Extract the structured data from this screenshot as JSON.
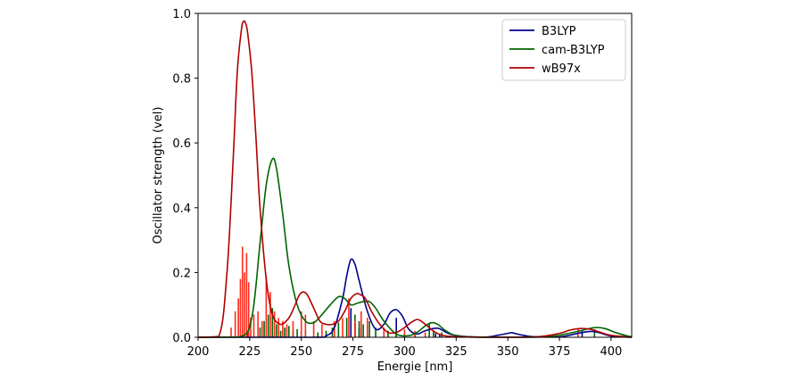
{
  "chart_data": {
    "type": "line",
    "title": "",
    "xlabel": "Energie [nm]",
    "ylabel": "Oscillator strength (vel)",
    "xlim": [
      200,
      410
    ],
    "ylim": [
      0,
      1.0
    ],
    "xticks": [
      200,
      225,
      250,
      275,
      300,
      325,
      350,
      375,
      400
    ],
    "yticks": [
      0.0,
      0.2,
      0.4,
      0.6,
      0.8,
      1.0
    ],
    "xtick_labels": [
      "200",
      "225",
      "250",
      "275",
      "300",
      "325",
      "350",
      "375",
      "400"
    ],
    "ytick_labels": [
      "0.0",
      "0.2",
      "0.4",
      "0.6",
      "0.8",
      "1.0"
    ],
    "grid": false,
    "legend_position": "top-right",
    "legend_entries": [
      "B3LYP",
      "cam-B3LYP",
      "wB97x"
    ],
    "colors": {
      "B3LYP": "#00008b",
      "cam-B3LYP": "#006400",
      "wB97x": "#b00000",
      "wB97x_sticks": "#ff2a1a"
    },
    "series": [
      {
        "name": "B3LYP",
        "color": "#00008b",
        "x": [
          200,
          255,
          262,
          266,
          270,
          272,
          274,
          276,
          278,
          282,
          286,
          290,
          293,
          296,
          299,
          302,
          306,
          310,
          316,
          322,
          330,
          340,
          345,
          350,
          352,
          356,
          362,
          375,
          390,
          400,
          410
        ],
        "y": [
          0,
          0,
          0.005,
          0.03,
          0.12,
          0.19,
          0.24,
          0.225,
          0.175,
          0.08,
          0.025,
          0.04,
          0.075,
          0.085,
          0.065,
          0.025,
          0.01,
          0.02,
          0.028,
          0.01,
          0.002,
          0.001,
          0.006,
          0.012,
          0.014,
          0.008,
          0.002,
          0.001,
          0.018,
          0.004,
          0
        ],
        "sticks": {
          "x": [
            274,
            276,
            278,
            296,
            315,
            317,
            386
          ],
          "y": [
            0.09,
            0.04,
            0.03,
            0.06,
            0.012,
            0.008,
            0.02
          ]
        }
      },
      {
        "name": "cam-B3LYP",
        "color": "#006400",
        "x": [
          200,
          220,
          226,
          230,
          233,
          236,
          238,
          241,
          244,
          248,
          252,
          256,
          260,
          264,
          268,
          271,
          274,
          277,
          280,
          283,
          286,
          290,
          296,
          302,
          306,
          310,
          313,
          316,
          320,
          325,
          335,
          355,
          370,
          378,
          385,
          392,
          397,
          402,
          408,
          410
        ],
        "y": [
          0,
          0.001,
          0.06,
          0.29,
          0.47,
          0.55,
          0.52,
          0.38,
          0.22,
          0.1,
          0.05,
          0.045,
          0.07,
          0.1,
          0.125,
          0.12,
          0.1,
          0.105,
          0.11,
          0.11,
          0.09,
          0.05,
          0.01,
          0.005,
          0.015,
          0.035,
          0.045,
          0.04,
          0.02,
          0.005,
          0.001,
          0,
          0.002,
          0.01,
          0.02,
          0.03,
          0.027,
          0.015,
          0.004,
          0.002
        ],
        "sticks": {
          "x": [
            224,
            230,
            232,
            234,
            236,
            238,
            240,
            242,
            244,
            246,
            248,
            250,
            252,
            258,
            262,
            265,
            268,
            272,
            276,
            278,
            280,
            283,
            286,
            292,
            296,
            305,
            312,
            314,
            318,
            392
          ],
          "y": [
            0.015,
            0.03,
            0.05,
            0.07,
            0.09,
            0.04,
            0.02,
            0.03,
            0.035,
            0.02,
            0.025,
            0.02,
            0.02,
            0.015,
            0.02,
            0.03,
            0.045,
            0.06,
            0.07,
            0.05,
            0.04,
            0.05,
            0.03,
            0.02,
            0.02,
            0.015,
            0.04,
            0.02,
            0.015,
            0.025
          ]
        }
      },
      {
        "name": "wB97x",
        "color": "#b00000",
        "x": [
          200,
          210,
          214,
          217,
          219,
          221,
          222,
          223,
          224,
          226,
          228,
          230,
          233,
          236,
          240,
          244,
          247,
          249,
          251,
          253,
          256,
          259,
          262,
          265,
          268,
          271,
          274,
          277,
          279,
          281,
          284,
          288,
          292,
          296,
          300,
          303,
          306,
          308,
          311,
          315,
          320,
          330,
          345,
          365,
          375,
          380,
          385,
          390,
          395,
          400,
          410
        ],
        "y": [
          0,
          0.003,
          0.2,
          0.55,
          0.82,
          0.95,
          0.975,
          0.97,
          0.94,
          0.82,
          0.62,
          0.4,
          0.18,
          0.07,
          0.04,
          0.06,
          0.1,
          0.13,
          0.14,
          0.13,
          0.09,
          0.05,
          0.04,
          0.04,
          0.05,
          0.08,
          0.12,
          0.135,
          0.13,
          0.12,
          0.08,
          0.04,
          0.015,
          0.015,
          0.03,
          0.045,
          0.055,
          0.05,
          0.035,
          0.015,
          0.004,
          0.001,
          0,
          0.002,
          0.012,
          0.022,
          0.027,
          0.025,
          0.015,
          0.006,
          0
        ],
        "sticks": {
          "x": [
            216,
            218,
            219.5,
            220.5,
            221.5,
            222.5,
            223.5,
            224.5,
            225.5,
            227,
            229,
            231,
            233,
            235,
            237,
            239,
            241,
            243,
            246,
            250,
            252,
            256,
            260,
            266,
            270,
            273,
            276,
            279,
            282,
            290,
            300,
            305,
            310,
            384
          ],
          "y": [
            0.03,
            0.08,
            0.12,
            0.18,
            0.28,
            0.2,
            0.26,
            0.17,
            0.06,
            0.07,
            0.08,
            0.05,
            0.19,
            0.14,
            0.08,
            0.06,
            0.05,
            0.04,
            0.05,
            0.08,
            0.07,
            0.05,
            0.04,
            0.05,
            0.06,
            0.12,
            0.05,
            0.08,
            0.06,
            0.03,
            0.025,
            0.02,
            0.015,
            0.025
          ]
        }
      }
    ]
  }
}
